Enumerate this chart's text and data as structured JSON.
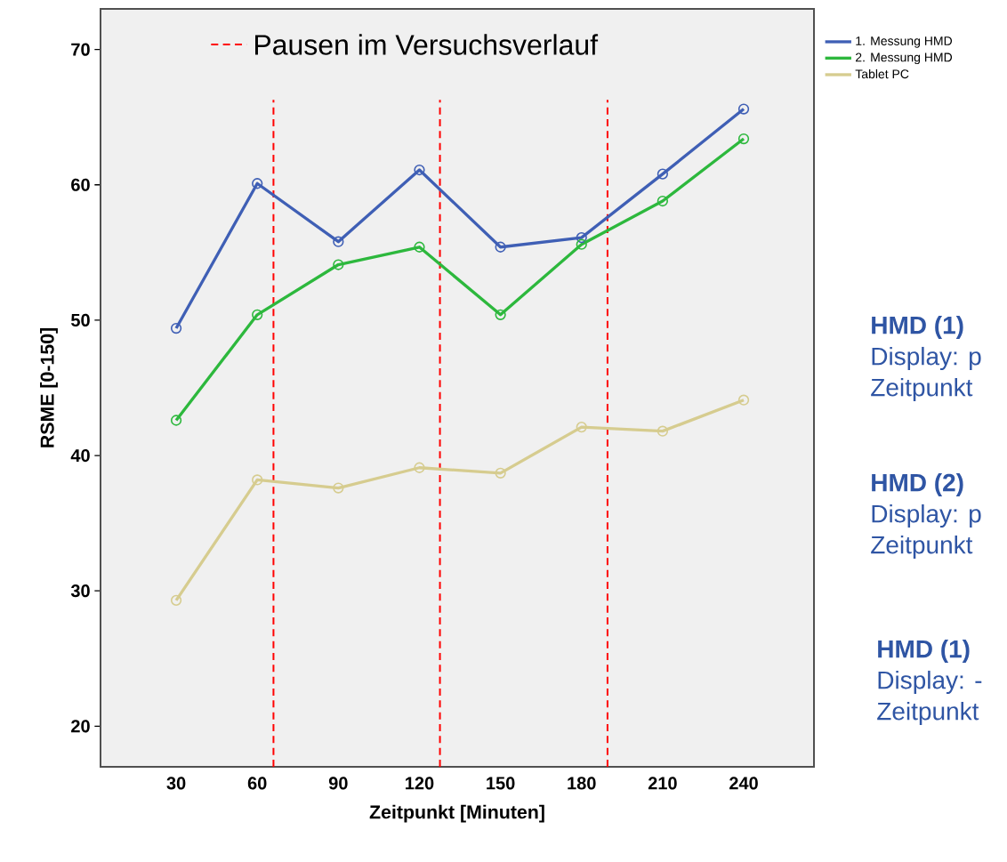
{
  "chart_data": {
    "type": "line",
    "xlabel": "Zeitpunkt [Minuten]",
    "ylabel": "RSME [0-150]",
    "x": [
      30,
      60,
      90,
      120,
      150,
      180,
      210,
      240
    ],
    "series": [
      {
        "name": "1. Messung HMD",
        "color": "#3f5fb5",
        "values": [
          49.4,
          60.1,
          55.8,
          61.1,
          55.4,
          56.1,
          60.8,
          65.6
        ]
      },
      {
        "name": "2. Messung HMD",
        "color": "#2db83d",
        "values": [
          42.6,
          50.4,
          54.1,
          55.4,
          50.4,
          55.6,
          58.8,
          63.4
        ]
      },
      {
        "name": "Tablet PC",
        "color": "#d6cc8f",
        "values": [
          29.3,
          38.2,
          37.6,
          39.1,
          38.7,
          42.1,
          41.8,
          44.1
        ]
      }
    ],
    "xlim": [
      2,
      266
    ],
    "ylim": [
      17,
      73
    ],
    "xticks": [
      30,
      60,
      90,
      120,
      150,
      180,
      210,
      240
    ],
    "yticks": [
      20,
      30,
      40,
      50,
      60,
      70
    ],
    "marker": "circle",
    "line_style": "solid",
    "legend": "top right",
    "grid": false,
    "ref_lines": [
      {
        "axis": "x",
        "value": 66,
        "label": "Pausen im Versuchsverlauf",
        "color": "#ff0000",
        "line_style": "dashed"
      },
      {
        "axis": "x",
        "value": 127.6,
        "color": "#ff0000",
        "line_style": "dashed"
      },
      {
        "axis": "x",
        "value": 189.6,
        "color": "#ff0000",
        "line_style": "dashed"
      }
    ],
    "annotations": [
      "HMD (1)",
      "Display: p",
      "Zeitpunkt",
      "HMD (2)",
      "Display: p",
      "Zeitpunkt",
      "HMD (1)",
      "Display: -",
      "Zeitpunkt"
    ]
  }
}
